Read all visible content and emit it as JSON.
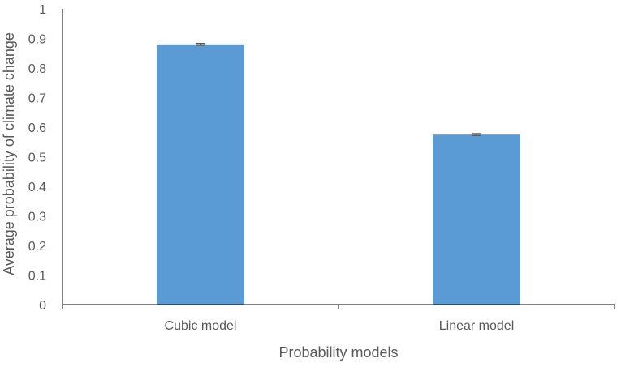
{
  "chart_data": {
    "type": "bar",
    "title": "",
    "xlabel": "Probability models",
    "ylabel": "Average probability of climate change",
    "categories": [
      "Cubic model",
      "Linear model"
    ],
    "values": [
      0.88,
      0.575
    ],
    "error": [
      0.003,
      0.003
    ],
    "ylim": [
      0,
      1
    ],
    "yticks": [
      "0",
      "0.1",
      "0.2",
      "0.3",
      "0.4",
      "0.5",
      "0.6",
      "0.7",
      "0.8",
      "0.9",
      "1"
    ],
    "grid": false,
    "legend": "none",
    "colors": {
      "bar": "#5B9BD5",
      "axis": "#000000",
      "error_bar": "#595959",
      "text": "#595959"
    }
  }
}
